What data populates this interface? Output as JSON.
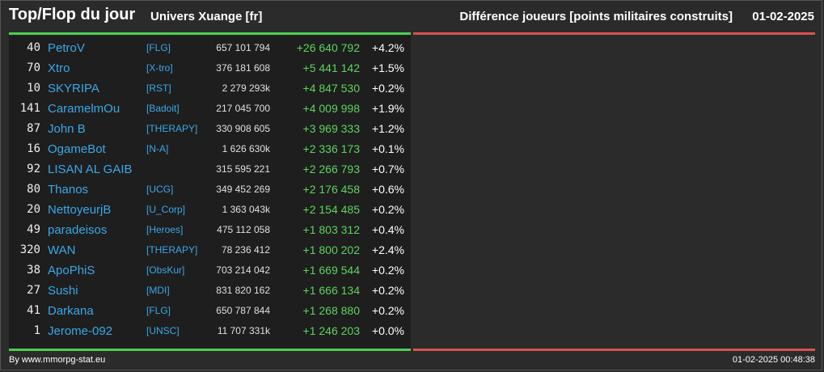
{
  "header": {
    "title": "Top/Flop du jour",
    "universe": "Univers Xuange [fr]",
    "subtitle": "Différence joueurs [points militaires construits]",
    "date": "01-02-2025"
  },
  "colors": {
    "background": "#2b2b2b",
    "panel": "#1e1e1e",
    "top_bar": "#4ccd52",
    "flop_bar": "#d9534f",
    "player_link": "#3aa8e8",
    "positive_diff": "#5fd35f"
  },
  "top_list": [
    {
      "rank": "40",
      "name": "PetroV",
      "alliance": "[FLG]",
      "points": "657 101 794",
      "diff": "+26 640 792",
      "pct": "+4.2%"
    },
    {
      "rank": "70",
      "name": "Xtro",
      "alliance": "[X-tro]",
      "points": "376 181 608",
      "diff": "+5 441 142",
      "pct": "+1.5%"
    },
    {
      "rank": "10",
      "name": "SKYRIPA",
      "alliance": "[RST]",
      "points": "2 279 293k",
      "diff": "+4 847 530",
      "pct": "+0.2%"
    },
    {
      "rank": "141",
      "name": "CaramelmOu",
      "alliance": "[Badoit]",
      "points": "217 045 700",
      "diff": "+4 009 998",
      "pct": "+1.9%"
    },
    {
      "rank": "87",
      "name": "John B",
      "alliance": "[THERAPY]",
      "points": "330 908 605",
      "diff": "+3 969 333",
      "pct": "+1.2%"
    },
    {
      "rank": "16",
      "name": "OgameBot",
      "alliance": "[N-A]",
      "points": "1 626 630k",
      "diff": "+2 336 173",
      "pct": "+0.1%"
    },
    {
      "rank": "92",
      "name": "LISAN AL GAIB",
      "alliance": "",
      "points": "315 595 221",
      "diff": "+2 266 793",
      "pct": "+0.7%"
    },
    {
      "rank": "80",
      "name": "Thanos",
      "alliance": "[UCG]",
      "points": "349 452 269",
      "diff": "+2 176 458",
      "pct": "+0.6%"
    },
    {
      "rank": "20",
      "name": "NettoyeurjB",
      "alliance": "[U_Corp]",
      "points": "1 363 043k",
      "diff": "+2 154 485",
      "pct": "+0.2%"
    },
    {
      "rank": "49",
      "name": "paradeisos",
      "alliance": "[Heroes]",
      "points": "475 112 058",
      "diff": "+1 803 312",
      "pct": "+0.4%"
    },
    {
      "rank": "320",
      "name": "WAN",
      "alliance": "[THERAPY]",
      "points": "78 236 412",
      "diff": "+1 800 202",
      "pct": "+2.4%"
    },
    {
      "rank": "38",
      "name": "ApoPhiS",
      "alliance": "[ObsKur]",
      "points": "703 214 042",
      "diff": "+1 669 544",
      "pct": "+0.2%"
    },
    {
      "rank": "27",
      "name": "Sushi",
      "alliance": "[MDI]",
      "points": "831 820 162",
      "diff": "+1 666 134",
      "pct": "+0.2%"
    },
    {
      "rank": "41",
      "name": "Darkana",
      "alliance": "[FLG]",
      "points": "650 787 844",
      "diff": "+1 268 880",
      "pct": "+0.2%"
    },
    {
      "rank": "1",
      "name": "Jerome-092",
      "alliance": "[UNSC]",
      "points": "11 707 331k",
      "diff": "+1 246 203",
      "pct": "+0.0%"
    }
  ],
  "footer": {
    "credit": "By www.mmorpg-stat.eu",
    "timestamp": "01-02-2025 00:48:38"
  }
}
